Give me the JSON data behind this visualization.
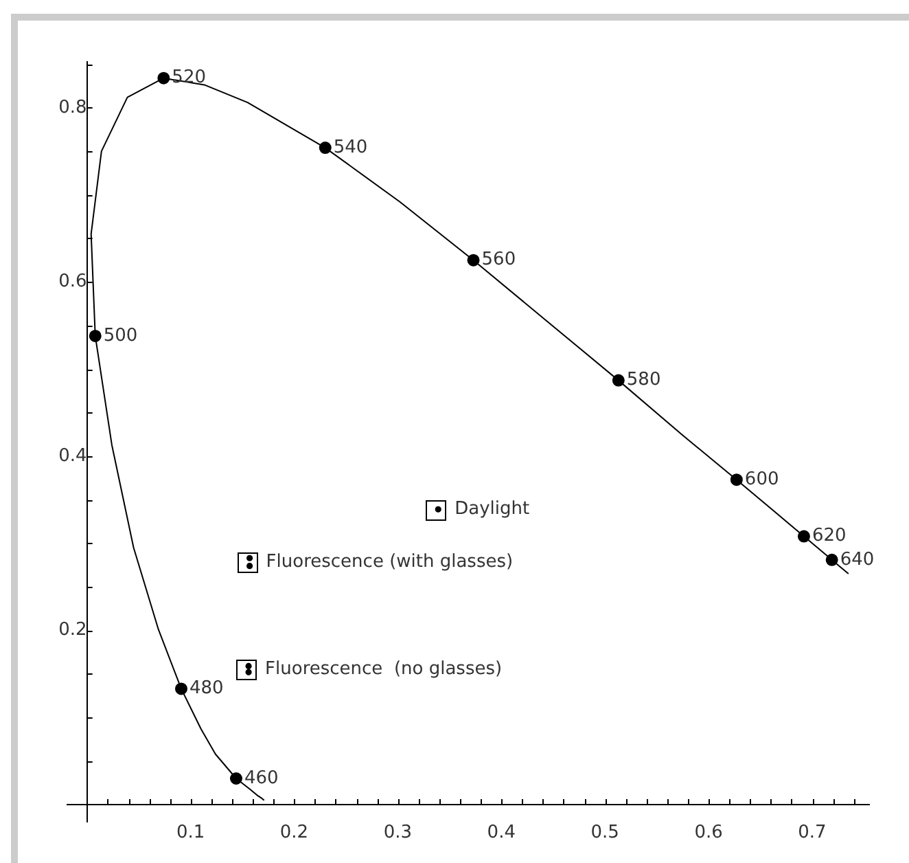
{
  "chart_data": {
    "type": "line",
    "xlim": [
      -0.019,
      0.755
    ],
    "ylim": [
      -0.02,
      0.853
    ],
    "xticks": [
      {
        "value": 0.02,
        "label": null
      },
      {
        "value": 0.04,
        "label": null
      },
      {
        "value": 0.06,
        "label": null
      },
      {
        "value": 0.08,
        "label": null
      },
      0.1,
      {
        "value": 0.12,
        "label": null
      },
      {
        "value": 0.14,
        "label": null
      },
      {
        "value": 0.16,
        "label": null
      },
      {
        "value": 0.18,
        "label": null
      },
      0.2,
      {
        "value": 0.22,
        "label": null
      },
      {
        "value": 0.24,
        "label": null
      },
      {
        "value": 0.26,
        "label": null
      },
      {
        "value": 0.28,
        "label": null
      },
      0.3,
      {
        "value": 0.32,
        "label": null
      },
      {
        "value": 0.34,
        "label": null
      },
      {
        "value": 0.36,
        "label": null
      },
      {
        "value": 0.38,
        "label": null
      },
      0.4,
      {
        "value": 0.42,
        "label": null
      },
      {
        "value": 0.44,
        "label": null
      },
      {
        "value": 0.46,
        "label": null
      },
      {
        "value": 0.48,
        "label": null
      },
      0.5,
      {
        "value": 0.52,
        "label": null
      },
      {
        "value": 0.54,
        "label": null
      },
      {
        "value": 0.56,
        "label": null
      },
      {
        "value": 0.58,
        "label": null
      },
      0.6,
      {
        "value": 0.62,
        "label": null
      },
      {
        "value": 0.64,
        "label": null
      },
      {
        "value": 0.66,
        "label": null
      },
      {
        "value": 0.68,
        "label": null
      },
      0.7,
      {
        "value": 0.72,
        "label": null
      },
      {
        "value": 0.74,
        "label": null
      }
    ],
    "yticks": [
      {
        "value": 0.05,
        "label": null
      },
      {
        "value": 0.1,
        "label": null
      },
      {
        "value": 0.15,
        "label": null
      },
      0.2,
      {
        "value": 0.25,
        "label": null
      },
      {
        "value": 0.3,
        "label": null
      },
      {
        "value": 0.35,
        "label": null
      },
      0.4,
      {
        "value": 0.45,
        "label": null
      },
      {
        "value": 0.5,
        "label": null
      },
      {
        "value": 0.55,
        "label": null
      },
      0.6,
      {
        "value": 0.65,
        "label": null
      },
      {
        "value": 0.7,
        "label": null
      },
      {
        "value": 0.75,
        "label": null
      },
      0.8,
      {
        "value": 0.85,
        "label": null
      }
    ],
    "series": [
      {
        "color": "#000000",
        "marker": "none",
        "x": [
          0.171,
          0.169,
          0.164,
          0.157,
          0.144,
          0.124,
          0.11,
          0.091,
          0.069,
          0.045,
          0.024,
          0.008,
          0.004,
          0.014,
          0.039,
          0.074,
          0.114,
          0.155,
          0.23,
          0.302,
          0.373,
          0.444,
          0.513,
          0.575,
          0.627,
          0.666,
          0.692,
          0.708,
          0.719,
          0.726,
          0.73,
          0.733,
          0.735
        ],
        "values": [
          0.005,
          0.007,
          0.011,
          0.018,
          0.03,
          0.058,
          0.087,
          0.133,
          0.201,
          0.295,
          0.413,
          0.538,
          0.655,
          0.75,
          0.812,
          0.834,
          0.826,
          0.806,
          0.754,
          0.692,
          0.625,
          0.555,
          0.487,
          0.424,
          0.373,
          0.334,
          0.308,
          0.292,
          0.281,
          0.274,
          0.27,
          0.267,
          0.265
        ]
      },
      {
        "type": "scatter",
        "color": "#000000",
        "marker": "circle",
        "x": [
          0.144,
          0.091,
          0.008,
          0.074,
          0.23,
          0.373,
          0.513,
          0.627,
          0.692,
          0.719
        ],
        "values": [
          0.03,
          0.133,
          0.538,
          0.834,
          0.754,
          0.625,
          0.487,
          0.373,
          0.308,
          0.281
        ]
      },
      {
        "type": "scatter",
        "color": "#000000",
        "marker": "circle",
        "x": [
          0.339
        ],
        "values": [
          0.339
        ]
      },
      {
        "type": "scatter",
        "color": "#000000",
        "marker": "circle",
        "x": [
          0.157,
          0.157
        ],
        "values": [
          0.283,
          0.274
        ]
      },
      {
        "type": "scatter",
        "color": "#000000",
        "marker": "circle",
        "x": [
          0.156,
          0.156
        ],
        "values": [
          0.159,
          0.152
        ]
      }
    ],
    "annotations": [
      {
        "text": "460",
        "x": 0.144,
        "y": 0.03
      },
      {
        "text": "480",
        "x": 0.091,
        "y": 0.133
      },
      {
        "text": "500",
        "x": 0.008,
        "y": 0.538
      },
      {
        "text": "520",
        "x": 0.074,
        "y": 0.834
      },
      {
        "text": "540",
        "x": 0.23,
        "y": 0.754
      },
      {
        "text": "560",
        "x": 0.373,
        "y": 0.625
      },
      {
        "text": "580",
        "x": 0.513,
        "y": 0.487
      },
      {
        "text": "600",
        "x": 0.627,
        "y": 0.373
      },
      {
        "text": "620",
        "x": 0.692,
        "y": 0.308
      },
      {
        "text": "640",
        "x": 0.719,
        "y": 0.281
      },
      {
        "text": "Daylight",
        "x": 0.339,
        "y": 0.339
      },
      {
        "text": "Fluorescence (with glasses)",
        "x": 0.157,
        "y": 0.278
      },
      {
        "text": "Fluorescence  (no glasses)",
        "x": 0.156,
        "y": 0.155
      }
    ]
  }
}
